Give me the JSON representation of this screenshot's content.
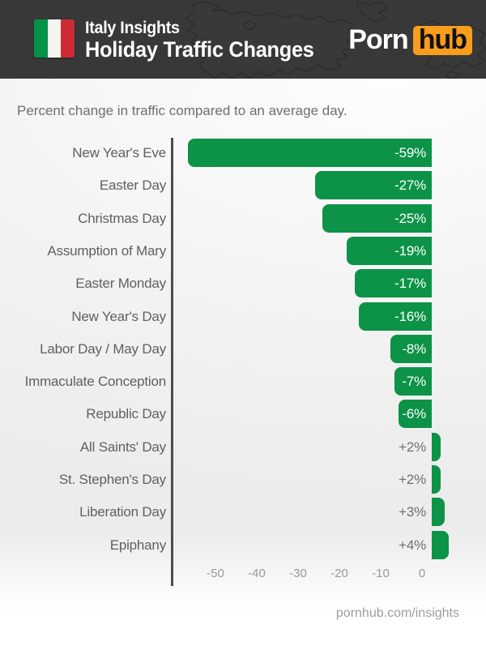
{
  "header": {
    "title_small": "Italy Insights",
    "title_large": "Holiday Traffic Changes",
    "flag": {
      "country": "Italy",
      "colors": [
        "#009246",
        "#f4f5f0",
        "#ce2b37"
      ]
    },
    "logo": {
      "part1": "Porn",
      "part2": "hub",
      "bg": "#f99d1c"
    },
    "background_color": "#383838"
  },
  "subtitle": "Percent change in traffic compared to an average day.",
  "chart_data": {
    "type": "bar",
    "orientation": "horizontal",
    "title": "Holiday Traffic Changes",
    "xlabel": "Percent change in traffic compared to an average day",
    "categories": [
      "New Year's Eve",
      "Easter Day",
      "Christmas Day",
      "Assumption of Mary",
      "Easter Monday",
      "New Year's Day",
      "Labor Day / May Day",
      "Immaculate Conception",
      "Republic Day",
      "All Saints' Day",
      "St. Stephen's Day",
      "Liberation Day",
      "Epiphany"
    ],
    "values": [
      -59,
      -27,
      -25,
      -19,
      -17,
      -16,
      -8,
      -7,
      -6,
      2,
      2,
      3,
      4
    ],
    "value_labels": [
      "-59%",
      "-27%",
      "-25%",
      "-19%",
      "-17%",
      "-16%",
      "-8%",
      "-7%",
      "-6%",
      "+2%",
      "+2%",
      "+3%",
      "+4%"
    ],
    "xticks": [
      -50,
      -40,
      -30,
      -20,
      -10,
      0
    ],
    "xtick_labels": [
      "-50",
      "-40",
      "-30",
      "-20",
      "-10",
      "0"
    ],
    "xlim": [
      -63,
      6
    ],
    "grid": false,
    "legend": false,
    "bar_color": "#0c9347",
    "negative_label_color": "#ffffff",
    "positive_label_color": "#6f6f6f",
    "axis_line_color": "#4d4d4d"
  },
  "footer": {
    "link": "pornhub.com/insights"
  }
}
